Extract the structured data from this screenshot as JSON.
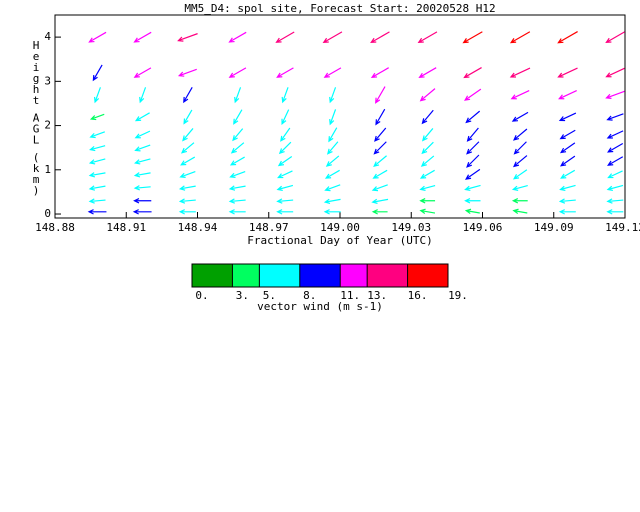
{
  "chart_data": {
    "type": "vector",
    "title": "MM5_D4: spol site,  Forecast Start: 20020528 H12",
    "x_label": "Fractional Day of Year (UTC)",
    "y_label": "Height AGL (km)",
    "xlim": [
      148.88,
      149.12
    ],
    "xticks": [
      148.88,
      148.91,
      148.94,
      148.97,
      {
        "value": 149,
        "label": "149.00"
      },
      149.03,
      149.06,
      149.09,
      {
        "value": 149.12,
        "label": "149.12"
      }
    ],
    "ylim": [
      -0.09,
      4.5
    ],
    "yticks": [
      0,
      1,
      2,
      3,
      4
    ],
    "x": [
      148.898,
      148.917,
      148.936,
      148.957,
      148.977,
      148.997,
      149.017,
      149.037,
      149.056,
      149.076,
      149.096,
      149.116
    ],
    "levels": [
      0.05,
      0.3,
      0.6,
      0.9,
      1.2,
      1.5,
      1.8,
      2.2,
      2.7,
      3.2,
      4.0
    ],
    "columns": [
      {
        "speed": [
          9,
          6,
          6,
          6,
          6,
          5.5,
          5,
          3,
          6,
          9,
          12
        ],
        "direction": [
          180,
          185,
          190,
          190,
          195,
          195,
          200,
          200,
          250,
          240,
          210
        ]
      },
      {
        "speed": [
          9,
          8,
          6,
          6,
          6,
          6,
          6,
          6,
          6,
          11,
          12
        ],
        "direction": [
          180,
          180,
          185,
          190,
          195,
          200,
          205,
          210,
          250,
          210,
          210
        ]
      },
      {
        "speed": [
          6,
          6,
          6,
          6,
          6,
          6,
          6,
          6,
          8,
          11,
          14
        ],
        "direction": [
          180,
          185,
          190,
          200,
          210,
          220,
          230,
          240,
          240,
          200,
          200
        ]
      },
      {
        "speed": [
          6,
          6,
          6,
          6,
          6,
          6,
          5,
          7,
          6,
          11,
          12
        ],
        "direction": [
          180,
          185,
          190,
          200,
          210,
          220,
          230,
          240,
          250,
          210,
          210
        ]
      },
      {
        "speed": [
          6,
          6,
          6,
          6,
          6,
          6,
          6,
          6,
          6,
          11,
          14
        ],
        "direction": [
          180,
          185,
          195,
          205,
          215,
          225,
          235,
          245,
          250,
          210,
          210
        ]
      },
      {
        "speed": [
          6,
          6,
          6,
          6,
          6,
          6,
          6,
          6,
          6,
          11,
          15
        ],
        "direction": [
          180,
          190,
          200,
          210,
          220,
          230,
          240,
          250,
          250,
          210,
          210
        ]
      },
      {
        "speed": [
          4,
          6,
          6,
          6,
          7,
          8,
          8,
          9,
          11,
          12,
          15
        ],
        "direction": [
          180,
          190,
          200,
          210,
          220,
          225,
          230,
          240,
          240,
          210,
          210
        ]
      },
      {
        "speed": [
          4,
          4,
          5,
          6,
          6,
          6,
          6,
          8,
          11,
          12,
          15
        ],
        "direction": [
          170,
          180,
          195,
          210,
          220,
          225,
          230,
          230,
          220,
          210,
          210
        ]
      },
      {
        "speed": [
          3,
          5,
          6,
          8,
          8,
          8,
          8,
          9,
          12,
          13,
          16
        ],
        "direction": [
          170,
          180,
          195,
          215,
          225,
          225,
          230,
          220,
          215,
          210,
          210
        ]
      },
      {
        "speed": [
          3,
          4,
          5,
          6,
          8,
          8,
          8,
          9,
          12,
          15,
          16
        ],
        "direction": [
          170,
          180,
          195,
          215,
          220,
          225,
          220,
          210,
          205,
          205,
          210
        ]
      },
      {
        "speed": [
          6,
          6,
          6,
          6,
          8,
          8,
          8,
          9,
          12,
          15,
          17
        ],
        "direction": [
          180,
          185,
          195,
          210,
          215,
          215,
          210,
          205,
          205,
          205,
          210
        ]
      },
      {
        "speed": [
          6,
          6,
          6,
          6,
          8,
          8,
          8,
          8,
          12,
          13,
          15
        ],
        "direction": [
          180,
          185,
          195,
          205,
          210,
          210,
          205,
          200,
          200,
          205,
          210
        ]
      }
    ],
    "colorbar_title": "vector wind (m s-1)",
    "colorbar_levels": [
      {
        "value": 0,
        "label": "0."
      },
      {
        "value": 3,
        "label": "3."
      },
      {
        "value": 5,
        "label": "5."
      },
      {
        "value": 8,
        "label": "8."
      },
      {
        "value": 11,
        "label": "11."
      },
      {
        "value": 13,
        "label": "13."
      },
      {
        "value": 16,
        "label": "16."
      },
      {
        "value": 19,
        "label": "19."
      }
    ],
    "colorbar_colors": [
      "#00a000",
      "#00ff60",
      "#00ffff",
      "#0000ff",
      "#ff00ff",
      "#ff0080",
      "#ff0000"
    ]
  }
}
